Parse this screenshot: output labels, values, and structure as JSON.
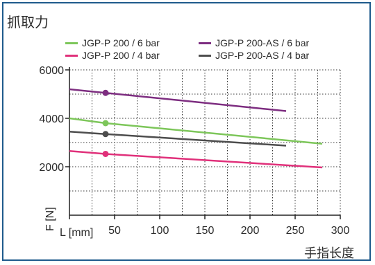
{
  "chart_data": {
    "type": "line",
    "title": "抓取力",
    "xlabel": "手指长度",
    "xunit_label": "L [mm]",
    "ylabel": "F [N]",
    "xlim": [
      0,
      300
    ],
    "ylim": [
      0,
      6000
    ],
    "xticks": [
      50,
      100,
      150,
      200,
      250,
      300
    ],
    "yticks": [
      2000,
      4000,
      6000
    ],
    "grid": true,
    "legend_position": "top",
    "series": [
      {
        "name": "JGP-P 200 / 6 bar",
        "color": "#7dc65a",
        "x": [
          0,
          40,
          280
        ],
        "y": [
          4000,
          3800,
          2950
        ],
        "marker_x": 40,
        "marker_y": 3800
      },
      {
        "name": "JGP-P 200 / 4 bar",
        "color": "#e0307a",
        "x": [
          0,
          40,
          280
        ],
        "y": [
          2650,
          2530,
          1970
        ],
        "marker_x": 40,
        "marker_y": 2530
      },
      {
        "name": "JGP-P 200-AS / 6 bar",
        "color": "#7d2d80",
        "x": [
          0,
          40,
          240
        ],
        "y": [
          5200,
          5050,
          4300
        ],
        "marker_x": 40,
        "marker_y": 5050
      },
      {
        "name": "JGP-P 200-AS / 4 bar",
        "color": "#4d4d4d",
        "x": [
          0,
          40,
          240
        ],
        "y": [
          3450,
          3350,
          2870
        ],
        "marker_x": 40,
        "marker_y": 3350
      }
    ]
  }
}
